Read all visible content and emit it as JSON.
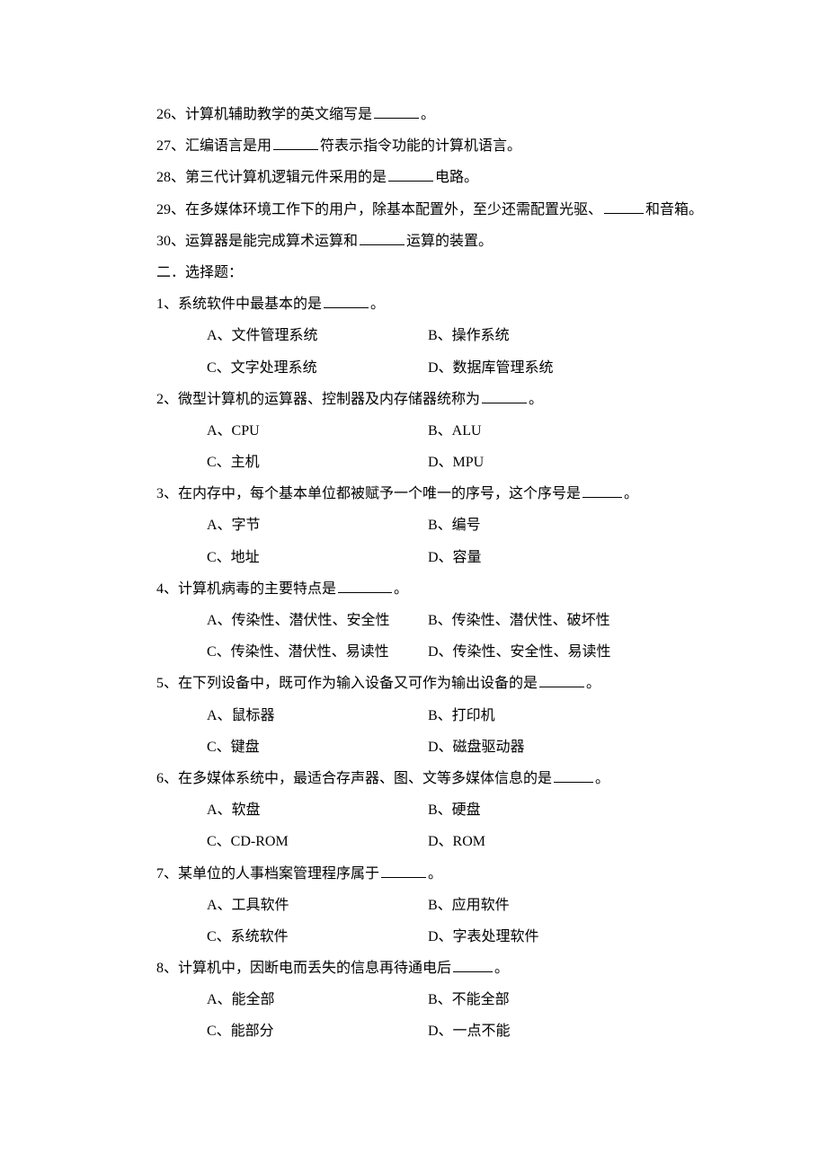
{
  "fill": {
    "q26": {
      "pre": "26、计算机辅助教学的英文缩写是",
      "post": "。"
    },
    "q27": {
      "pre": "27、汇编语言是用",
      "post": "符表示指令功能的计算机语言。"
    },
    "q28": {
      "pre": "28、第三代计算机逻辑元件采用的是",
      "post": "电路。"
    },
    "q29": {
      "pre": "29、在多媒体环境工作下的用户，除基本配置外，至少还需配置光驱、",
      "post": "和音箱。"
    },
    "q30": {
      "pre": "30、运算器是能完成算术运算和",
      "post": "运算的装置。"
    }
  },
  "section2": "二．选择题：",
  "mc": {
    "q1": {
      "stem_pre": "1、系统软件中最基本的是",
      "stem_post": "。",
      "A": "A、文件管理系统",
      "B": "B、操作系统",
      "C": "C、文字处理系统",
      "D": "D、数据库管理系统"
    },
    "q2": {
      "stem_pre": "2、微型计算机的运算器、控制器及内存储器统称为",
      "stem_post": "。",
      "A": "A、CPU",
      "B": "B、ALU",
      "C": "C、主机",
      "D": "D、MPU"
    },
    "q3": {
      "stem_pre": "3、在内存中，每个基本单位都被赋予一个唯一的序号，这个序号是",
      "stem_post": "。",
      "A": "A、字节",
      "B": "B、编号",
      "C": "C、地址",
      "D": "D、容量"
    },
    "q4": {
      "stem_pre": "4、计算机病毒的主要特点是",
      "stem_post": "。",
      "A": "A、传染性、潜伏性、安全性",
      "B": "B、传染性、潜伏性、破坏性",
      "C": "C、传染性、潜伏性、易读性",
      "D": "D、传染性、安全性、易读性"
    },
    "q5": {
      "stem_pre": "5、在下列设备中，既可作为输入设备又可作为输出设备的是",
      "stem_post": "。",
      "A": "A、鼠标器",
      "B": "B、打印机",
      "C": "C、键盘",
      "D": "D、磁盘驱动器"
    },
    "q6": {
      "stem_pre": "6、在多媒体系统中，最适合存声器、图、文等多媒体信息的是",
      "stem_post": "。",
      "A": "A、软盘",
      "B": "B、硬盘",
      "C": "C、CD-ROM",
      "D": "D、ROM"
    },
    "q7": {
      "stem_pre": "7、某单位的人事档案管理程序属于",
      "stem_post": "。",
      "A": "A、工具软件",
      "B": "B、应用软件",
      "C": "C、系统软件",
      "D": "D、字表处理软件"
    },
    "q8": {
      "stem_pre": "8、计算机中，因断电而丢失的信息再待通电后",
      "stem_post": "。",
      "A": "A、能全部",
      "B": "B、不能全部",
      "C": "C、能部分",
      "D": "D、一点不能"
    }
  }
}
